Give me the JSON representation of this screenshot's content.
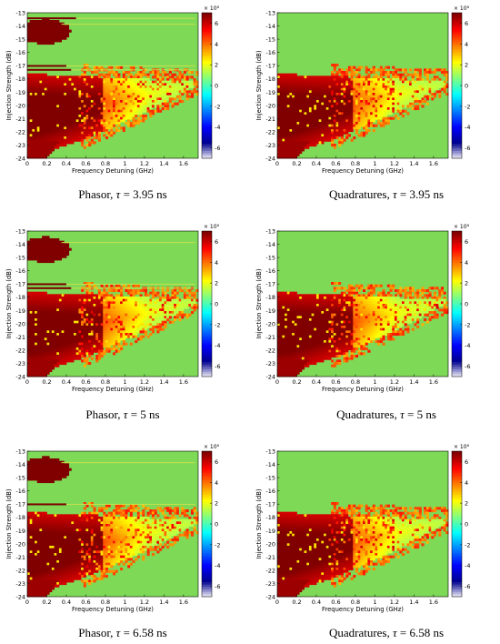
{
  "colors": {
    "background_level": "#7ed957",
    "max_level": "#7b0000",
    "colormap": [
      "#ffffff",
      "#00008f",
      "#0000ff",
      "#0080ff",
      "#00ffff",
      "#80ff80",
      "#ffff00",
      "#ff8000",
      "#ff0000",
      "#800000"
    ]
  },
  "chart_data": [
    {
      "panel": "phasor-3.95",
      "type": "heatmap",
      "caption_prefix": "Phasor, ",
      "caption_tau": "τ",
      "caption_value": " = 3.95 ns",
      "xlabel": "Frequency Detuning (GHz)",
      "ylabel": "Injection Strength (dB)",
      "xticks": [
        "0",
        "0.2",
        "0.4",
        "0.6",
        "0.8",
        "1",
        "1.2",
        "1.4",
        "1.6"
      ],
      "yticks": [
        "-13",
        "-14",
        "-15",
        "-16",
        "-17",
        "-18",
        "-19",
        "-20",
        "-21",
        "-22",
        "-23",
        "-24"
      ],
      "xlim": [
        0,
        1.75
      ],
      "ylim": [
        -24,
        -13
      ],
      "colorbar": {
        "exponent": "× 10⁸",
        "ticks": [
          "6",
          "4",
          "2",
          "0",
          "-2",
          "-4",
          "-6"
        ],
        "range": [
          -7,
          7
        ]
      },
      "features": {
        "upper_island": true,
        "thin_bands": true,
        "band_count": 4
      }
    },
    {
      "panel": "quadratures-3.95",
      "type": "heatmap",
      "caption_prefix": "Quadratures, ",
      "caption_tau": "τ",
      "caption_value": " = 3.95 ns",
      "xlabel": "Frequency Detuning (GHz)",
      "ylabel": "Injection Strength (dB)",
      "xticks": [
        "0",
        "0.2",
        "0.4",
        "0.6",
        "0.8",
        "1",
        "1.2",
        "1.4",
        "1.6"
      ],
      "yticks": [
        "-13",
        "-14",
        "-15",
        "-16",
        "-17",
        "-18",
        "-19",
        "-20",
        "-21",
        "-22",
        "-23",
        "-24"
      ],
      "xlim": [
        0,
        1.75
      ],
      "ylim": [
        -24,
        -13
      ],
      "colorbar": {
        "exponent": "× 10⁸",
        "ticks": [
          "6",
          "4",
          "2",
          "0",
          "-2",
          "-4",
          "-6"
        ],
        "range": [
          -7,
          7
        ]
      },
      "features": {
        "upper_island": false,
        "thin_bands": false,
        "band_count": 0
      }
    },
    {
      "panel": "phasor-5",
      "type": "heatmap",
      "caption_prefix": "Phasor, ",
      "caption_tau": "τ",
      "caption_value": " = 5 ns",
      "xlabel": "Frequency Detuning (GHz)",
      "ylabel": "Injection Strength (dB)",
      "xticks": [
        "0",
        "0.2",
        "0.4",
        "0.6",
        "0.8",
        "1",
        "1.2",
        "1.4",
        "1.6"
      ],
      "yticks": [
        "-13",
        "-14",
        "-15",
        "-16",
        "-17",
        "-18",
        "-19",
        "-20",
        "-21",
        "-22",
        "-23",
        "-24"
      ],
      "xlim": [
        0,
        1.75
      ],
      "ylim": [
        -24,
        -13
      ],
      "colorbar": {
        "exponent": "× 10⁸",
        "ticks": [
          "6",
          "4",
          "2",
          "0",
          "-2",
          "-4",
          "-6"
        ],
        "range": [
          -7,
          7
        ]
      },
      "features": {
        "upper_island": true,
        "thin_bands": true,
        "band_count": 3
      }
    },
    {
      "panel": "quadratures-5",
      "type": "heatmap",
      "caption_prefix": "Quadratures, ",
      "caption_tau": "τ",
      "caption_value": " = 5 ns",
      "xlabel": "Frequency Detuning (GHz)",
      "ylabel": "Injection Strength (dB)",
      "xticks": [
        "0",
        "0.2",
        "0.4",
        "0.6",
        "0.8",
        "1",
        "1.2",
        "1.4",
        "1.6"
      ],
      "yticks": [
        "-13",
        "-14",
        "-15",
        "-16",
        "-17",
        "-18",
        "-19",
        "-20",
        "-21",
        "-22",
        "-23",
        "-24"
      ],
      "xlim": [
        0,
        1.75
      ],
      "ylim": [
        -24,
        -13
      ],
      "colorbar": {
        "exponent": "× 10⁸",
        "ticks": [
          "6",
          "4",
          "2",
          "0",
          "-2",
          "-4",
          "-6"
        ],
        "range": [
          -7,
          7
        ]
      },
      "features": {
        "upper_island": false,
        "thin_bands": false,
        "band_count": 0
      }
    },
    {
      "panel": "phasor-6.58",
      "type": "heatmap",
      "caption_prefix": "Phasor, ",
      "caption_tau": "τ",
      "caption_value": " = 6.58 ns",
      "xlabel": "Frequency Detuning (GHz)",
      "ylabel": "Injection Strength (dB)",
      "xticks": [
        "0",
        "0.2",
        "0.4",
        "0.6",
        "0.8",
        "1",
        "1.2",
        "1.4",
        "1.6"
      ],
      "yticks": [
        "-13",
        "-14",
        "-15",
        "-16",
        "-17",
        "-18",
        "-19",
        "-20",
        "-21",
        "-22",
        "-23",
        "-24"
      ],
      "xlim": [
        0,
        1.75
      ],
      "ylim": [
        -24,
        -13
      ],
      "colorbar": {
        "exponent": "× 10⁸",
        "ticks": [
          "6",
          "4",
          "2",
          "0",
          "-2",
          "-4",
          "-6"
        ],
        "range": [
          -7,
          7
        ]
      },
      "features": {
        "upper_island": true,
        "thin_bands": true,
        "band_count": 2
      }
    },
    {
      "panel": "quadratures-6.58",
      "type": "heatmap",
      "caption_prefix": "Quadratures, ",
      "caption_tau": "τ",
      "caption_value": " = 6.58 ns",
      "xlabel": "Frequency Detuning (GHz)",
      "ylabel": "Injection Strength (dB)",
      "xticks": [
        "0",
        "0.2",
        "0.4",
        "0.6",
        "0.8",
        "1",
        "1.2",
        "1.4",
        "1.6"
      ],
      "yticks": [
        "-13",
        "-14",
        "-15",
        "-16",
        "-17",
        "-18",
        "-19",
        "-20",
        "-21",
        "-22",
        "-23",
        "-24"
      ],
      "xlim": [
        0,
        1.75
      ],
      "ylim": [
        -24,
        -13
      ],
      "colorbar": {
        "exponent": "× 10⁸",
        "ticks": [
          "6",
          "4",
          "2",
          "0",
          "-2",
          "-4",
          "-6"
        ],
        "range": [
          -7,
          7
        ]
      },
      "features": {
        "upper_island": false,
        "thin_bands": false,
        "band_count": 0
      }
    }
  ]
}
